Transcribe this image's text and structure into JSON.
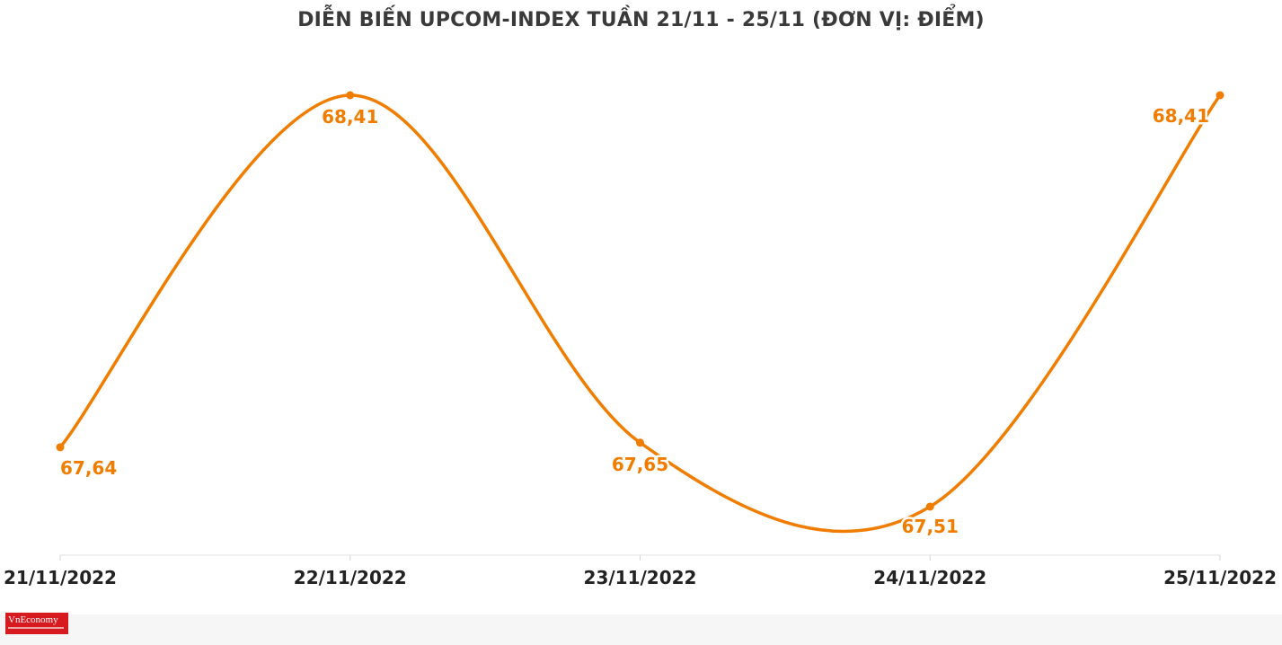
{
  "chart_data": {
    "type": "line",
    "title": "DIỄN BIẾN UPCOM-INDEX TUẦN 21/11 - 25/11 (ĐƠN VỊ: ĐIỂM)",
    "categories": [
      "21/11/2022",
      "22/11/2022",
      "23/11/2022",
      "24/11/2022",
      "25/11/2022"
    ],
    "values": [
      67.64,
      68.41,
      67.65,
      67.51,
      68.41
    ],
    "value_labels": [
      "67,64",
      "68,41",
      "67,65",
      "67,51",
      "68,41"
    ],
    "xlabel": "",
    "ylabel": "",
    "ylim": [
      67.51,
      68.41
    ],
    "grid": false,
    "line_color": "#f07d00",
    "smooth": true
  },
  "logo": {
    "text": "VnEconomy"
  }
}
